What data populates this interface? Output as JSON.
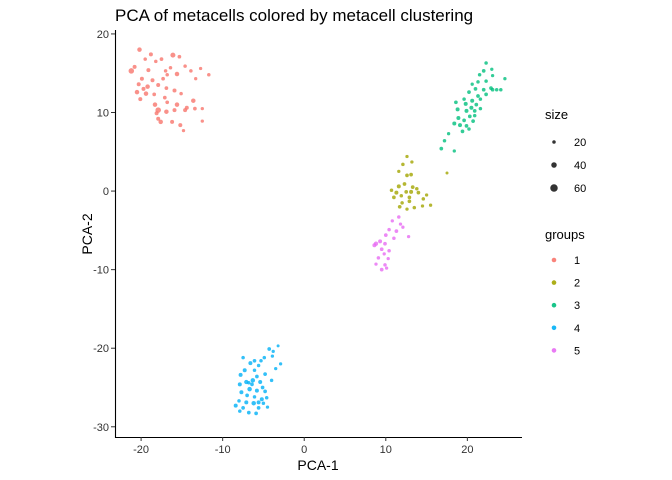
{
  "chart_data": {
    "type": "scatter",
    "title": "PCA of metacells colored by metacell clustering",
    "xlabel": "PCA-1",
    "ylabel": "PCA-2",
    "xlim": [
      -23.2,
      26.7
    ],
    "ylim": [
      -31.3,
      20.5
    ],
    "xticks": [
      -20,
      -10,
      0,
      10,
      20
    ],
    "yticks": [
      -30,
      -20,
      -10,
      0,
      10,
      20
    ],
    "grid": false,
    "legend_position": "right",
    "size_legend": {
      "title": "size",
      "entries": [
        20,
        40,
        60
      ]
    },
    "groups_legend": {
      "title": "groups",
      "entries": [
        "1",
        "2",
        "3",
        "4",
        "5"
      ]
    },
    "colors": {
      "1": "#F8766D",
      "2": "#A3A500",
      "3": "#00BF7D",
      "4": "#00B0F6",
      "5": "#E76BF3"
    },
    "series": [
      {
        "name": "1",
        "points": [
          [
            -20.2,
            18.0,
            30
          ],
          [
            -18.8,
            17.4,
            25
          ],
          [
            -17.5,
            16.8,
            22
          ],
          [
            -16.1,
            17.3,
            35
          ],
          [
            -15.3,
            17.1,
            22
          ],
          [
            -19.5,
            16.8,
            20
          ],
          [
            -18.2,
            16.5,
            20
          ],
          [
            -14.6,
            15.9,
            20
          ],
          [
            -16.4,
            15.7,
            20
          ],
          [
            -12.7,
            15.6,
            18
          ],
          [
            -11.7,
            14.8,
            20
          ],
          [
            -20.8,
            15.8,
            25
          ],
          [
            -21.2,
            15.3,
            40
          ],
          [
            -19.1,
            15.4,
            25
          ],
          [
            -17.0,
            15.3,
            20
          ],
          [
            -15.6,
            14.9,
            30
          ],
          [
            -13.9,
            15.3,
            20
          ],
          [
            -13.3,
            14.3,
            18
          ],
          [
            -19.9,
            14.3,
            25
          ],
          [
            -18.6,
            14.1,
            25
          ],
          [
            -17.3,
            14.3,
            22
          ],
          [
            -20.3,
            13.6,
            25
          ],
          [
            -19.2,
            13.3,
            30
          ],
          [
            -17.9,
            13.5,
            25
          ],
          [
            -16.9,
            13.1,
            22
          ],
          [
            -15.9,
            12.8,
            25
          ],
          [
            -15.1,
            12.4,
            20
          ],
          [
            -20.5,
            12.6,
            30
          ],
          [
            -19.4,
            12.4,
            30
          ],
          [
            -18.4,
            12.3,
            22
          ],
          [
            -17.1,
            11.9,
            22
          ],
          [
            -13.6,
            11.5,
            30
          ],
          [
            -20.1,
            11.7,
            25
          ],
          [
            -18.3,
            11.0,
            30
          ],
          [
            -16.8,
            11.3,
            22
          ],
          [
            -15.6,
            11.0,
            30
          ],
          [
            -14.4,
            10.6,
            25
          ],
          [
            -13.4,
            10.5,
            22
          ],
          [
            -18.1,
            9.9,
            25
          ],
          [
            -17.9,
            10.3,
            40
          ],
          [
            -16.9,
            10.1,
            30
          ],
          [
            -15.9,
            10.3,
            25
          ],
          [
            -14.6,
            10.3,
            25
          ],
          [
            -12.5,
            10.5,
            18
          ],
          [
            -17.9,
            9.2,
            25
          ],
          [
            -17.6,
            8.8,
            30
          ],
          [
            -16.2,
            8.8,
            25
          ],
          [
            -15.2,
            8.4,
            25
          ],
          [
            -12.5,
            8.9,
            18
          ],
          [
            -14.8,
            7.7,
            18
          ],
          [
            -16.8,
            14.8,
            20
          ],
          [
            -19.7,
            13.0,
            25
          ]
        ]
      },
      {
        "name": "2",
        "points": [
          [
            12.6,
            4.4,
            18
          ],
          [
            13.2,
            3.7,
            18
          ],
          [
            12.1,
            3.4,
            20
          ],
          [
            12.6,
            2.0,
            22
          ],
          [
            13.1,
            2.1,
            22
          ],
          [
            11.6,
            2.5,
            18
          ],
          [
            17.5,
            2.3,
            15
          ],
          [
            11.6,
            0.6,
            25
          ],
          [
            12.3,
            0.9,
            22
          ],
          [
            13.3,
            0.5,
            22
          ],
          [
            13.8,
            0.3,
            20
          ],
          [
            10.7,
            0.1,
            20
          ],
          [
            11.3,
            -0.2,
            25
          ],
          [
            12.5,
            -0.1,
            22
          ],
          [
            13.1,
            -0.1,
            25
          ],
          [
            14.0,
            -0.2,
            22
          ],
          [
            15.0,
            -0.5,
            18
          ],
          [
            11.0,
            -0.8,
            22
          ],
          [
            11.9,
            -0.6,
            20
          ],
          [
            12.9,
            -0.8,
            22
          ],
          [
            14.6,
            -1.0,
            20
          ],
          [
            12.0,
            -1.5,
            20
          ],
          [
            12.9,
            -1.3,
            22
          ],
          [
            13.5,
            -2.1,
            20
          ],
          [
            14.5,
            -1.9,
            18
          ],
          [
            15.5,
            -1.8,
            18
          ],
          [
            11.7,
            -2.0,
            22
          ],
          [
            12.6,
            -2.3,
            18
          ]
        ]
      },
      {
        "name": "3",
        "points": [
          [
            22.3,
            16.3,
            20
          ],
          [
            22.0,
            15.3,
            22
          ],
          [
            23.0,
            15.5,
            18
          ],
          [
            21.5,
            14.8,
            20
          ],
          [
            23.1,
            14.7,
            18
          ],
          [
            24.6,
            14.3,
            18
          ],
          [
            21.3,
            13.9,
            20
          ],
          [
            22.3,
            14.0,
            20
          ],
          [
            20.6,
            13.6,
            18
          ],
          [
            21.0,
            13.0,
            22
          ],
          [
            22.0,
            12.9,
            22
          ],
          [
            23.1,
            12.9,
            22
          ],
          [
            23.6,
            12.9,
            20
          ],
          [
            24.1,
            12.9,
            20
          ],
          [
            20.2,
            12.6,
            22
          ],
          [
            21.3,
            12.1,
            22
          ],
          [
            22.3,
            12.3,
            22
          ],
          [
            19.6,
            11.7,
            20
          ],
          [
            20.6,
            11.5,
            25
          ],
          [
            21.1,
            11.0,
            22
          ],
          [
            18.6,
            11.3,
            22
          ],
          [
            19.8,
            11.1,
            25
          ],
          [
            20.5,
            10.6,
            25
          ],
          [
            18.8,
            10.4,
            25
          ],
          [
            19.9,
            10.2,
            25
          ],
          [
            20.9,
            10.2,
            22
          ],
          [
            21.6,
            10.5,
            20
          ],
          [
            18.9,
            9.3,
            25
          ],
          [
            19.6,
            9.0,
            22
          ],
          [
            20.3,
            9.5,
            22
          ],
          [
            20.9,
            9.6,
            20
          ],
          [
            18.4,
            8.6,
            25
          ],
          [
            19.1,
            8.4,
            25
          ],
          [
            19.9,
            8.3,
            22
          ],
          [
            20.7,
            8.9,
            22
          ],
          [
            19.4,
            7.6,
            22
          ],
          [
            20.2,
            7.9,
            20
          ],
          [
            17.7,
            7.3,
            18
          ],
          [
            17.2,
            6.4,
            20
          ],
          [
            16.8,
            5.4,
            22
          ],
          [
            18.4,
            5.1,
            18
          ],
          [
            22.9,
            13.1,
            22
          ],
          [
            21.6,
            11.7,
            20
          ]
        ]
      },
      {
        "name": "4",
        "points": [
          [
            -3.2,
            -19.7,
            15
          ],
          [
            -7.5,
            -21.2,
            20
          ],
          [
            -4.3,
            -20.1,
            22
          ],
          [
            -3.8,
            -20.4,
            18
          ],
          [
            -4.9,
            -21.2,
            20
          ],
          [
            -5.3,
            -21.6,
            20
          ],
          [
            -6.1,
            -21.6,
            22
          ],
          [
            -6.6,
            -21.9,
            25
          ],
          [
            -2.9,
            -22.0,
            18
          ],
          [
            -5.6,
            -22.2,
            20
          ],
          [
            -3.5,
            -22.6,
            18
          ],
          [
            -7.3,
            -22.8,
            25
          ],
          [
            -6.1,
            -22.8,
            20
          ],
          [
            -7.8,
            -23.4,
            25
          ],
          [
            -5.8,
            -23.6,
            22
          ],
          [
            -4.8,
            -23.3,
            22
          ],
          [
            -6.3,
            -24.1,
            30
          ],
          [
            -7.1,
            -24.3,
            28
          ],
          [
            -5.4,
            -24.3,
            25
          ],
          [
            -4.0,
            -24.1,
            20
          ],
          [
            -7.9,
            -24.6,
            25
          ],
          [
            -6.4,
            -24.6,
            22
          ],
          [
            -5.1,
            -25.0,
            22
          ],
          [
            -6.7,
            -25.2,
            30
          ],
          [
            -5.8,
            -25.4,
            25
          ],
          [
            -4.8,
            -25.5,
            22
          ],
          [
            -7.7,
            -25.6,
            25
          ],
          [
            -7.0,
            -26.0,
            22
          ],
          [
            -6.1,
            -26.2,
            20
          ],
          [
            -5.2,
            -26.5,
            25
          ],
          [
            -4.6,
            -26.3,
            20
          ],
          [
            -8.0,
            -26.7,
            20
          ],
          [
            -7.1,
            -26.9,
            25
          ],
          [
            -6.2,
            -27.0,
            30
          ],
          [
            -5.0,
            -27.0,
            20
          ],
          [
            -8.4,
            -27.3,
            25
          ],
          [
            -7.5,
            -27.6,
            22
          ],
          [
            -5.6,
            -27.6,
            22
          ],
          [
            -4.5,
            -27.5,
            18
          ],
          [
            -6.8,
            -28.2,
            22
          ],
          [
            -5.9,
            -28.3,
            22
          ],
          [
            -7.9,
            -28.0,
            20
          ],
          [
            -6.8,
            -24.4,
            20
          ],
          [
            -5.6,
            -26.9,
            25
          ],
          [
            -3.9,
            -21.0,
            18
          ]
        ]
      },
      {
        "name": "5",
        "points": [
          [
            11.6,
            -3.3,
            20
          ],
          [
            10.8,
            -3.8,
            18
          ],
          [
            12.1,
            -4.6,
            18
          ],
          [
            10.4,
            -4.9,
            20
          ],
          [
            11.3,
            -5.1,
            22
          ],
          [
            10.0,
            -5.6,
            22
          ],
          [
            11.0,
            -6.0,
            20
          ],
          [
            12.8,
            -5.8,
            18
          ],
          [
            9.3,
            -6.4,
            25
          ],
          [
            8.8,
            -6.7,
            28
          ],
          [
            9.9,
            -6.7,
            22
          ],
          [
            8.6,
            -6.9,
            25
          ],
          [
            9.5,
            -7.4,
            22
          ],
          [
            10.4,
            -7.6,
            20
          ],
          [
            9.8,
            -8.0,
            18
          ],
          [
            9.1,
            -8.5,
            20
          ],
          [
            8.8,
            -9.3,
            18
          ],
          [
            9.9,
            -9.4,
            20
          ],
          [
            10.3,
            -8.6,
            18
          ],
          [
            9.5,
            -10.0,
            22
          ],
          [
            10.1,
            -9.8,
            18
          ],
          [
            11.8,
            -4.2,
            18
          ]
        ]
      }
    ]
  }
}
